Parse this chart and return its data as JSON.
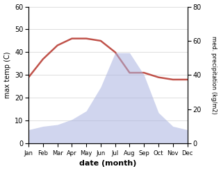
{
  "months": [
    "Jan",
    "Feb",
    "Mar",
    "Apr",
    "May",
    "Jun",
    "Jul",
    "Aug",
    "Sep",
    "Oct",
    "Nov",
    "Dec"
  ],
  "temp_C": [
    29,
    37,
    43,
    46,
    46,
    45,
    40,
    31,
    31,
    29,
    28,
    28
  ],
  "precip_scaled": [
    8,
    10,
    11,
    14,
    19,
    33,
    53,
    53,
    40,
    18,
    10,
    8
  ],
  "temp_color": "#c0524a",
  "precip_color": "#aab4e0",
  "precip_fill_alpha": 0.55,
  "temp_ylim": [
    0,
    60
  ],
  "precip_ylim": [
    0,
    80
  ],
  "temp_yticks": [
    0,
    10,
    20,
    30,
    40,
    50,
    60
  ],
  "precip_yticks": [
    0,
    20,
    40,
    60,
    80
  ],
  "xlabel": "date (month)",
  "ylabel_left": "max temp (C)",
  "ylabel_right": "med. precipitation (kg/m2)",
  "background_color": "#ffffff",
  "grid_color": "#d0d0d0",
  "line_width": 1.8
}
